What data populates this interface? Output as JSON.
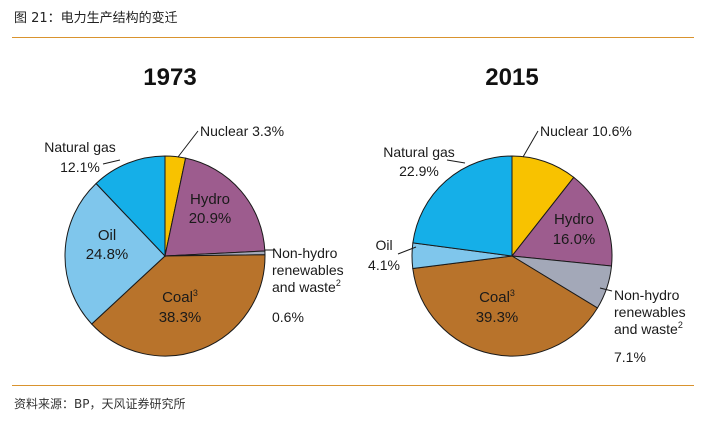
{
  "figure": {
    "title": "图 21：电力生产结构的变迁",
    "source": "资料来源：BP，天风证券研究所"
  },
  "chart_data": [
    {
      "type": "pie",
      "title": "1973",
      "slices": [
        {
          "name": "Nuclear",
          "value": 3.3,
          "color": "#f8c200",
          "label": "Nuclear",
          "value_label": "3.3%"
        },
        {
          "name": "Hydro",
          "value": 20.9,
          "color": "#9d5c8e",
          "label": "Hydro",
          "value_label": "20.9%"
        },
        {
          "name": "Non-hydro renewables and waste",
          "value": 0.6,
          "color": "#a3a8b8",
          "label_lines": [
            "Non-hydro",
            "renewables",
            "and waste"
          ],
          "superscript": "2",
          "value_label": "0.6%"
        },
        {
          "name": "Coal",
          "value": 38.3,
          "color": "#b8732b",
          "label": "Coal",
          "superscript": "3",
          "value_label": "38.3%"
        },
        {
          "name": "Oil",
          "value": 24.8,
          "color": "#7fc6ec",
          "label": "Oil",
          "value_label": "24.8%"
        },
        {
          "name": "Natural gas",
          "value": 12.1,
          "color": "#15afe8",
          "label": "Natural gas",
          "value_label": "12.1%"
        }
      ]
    },
    {
      "type": "pie",
      "title": "2015",
      "slices": [
        {
          "name": "Nuclear",
          "value": 10.6,
          "color": "#f8c200",
          "label": "Nuclear",
          "value_label": "10.6%"
        },
        {
          "name": "Hydro",
          "value": 16.0,
          "color": "#9d5c8e",
          "label": "Hydro",
          "value_label": "16.0%"
        },
        {
          "name": "Non-hydro renewables and waste",
          "value": 7.1,
          "color": "#a3a8b8",
          "label_lines": [
            "Non-hydro",
            "renewables",
            "and waste"
          ],
          "superscript": "2",
          "value_label": "7.1%"
        },
        {
          "name": "Coal",
          "value": 39.3,
          "color": "#b8732b",
          "label": "Coal",
          "superscript": "3",
          "value_label": "39.3%"
        },
        {
          "name": "Oil",
          "value": 4.1,
          "color": "#7fc6ec",
          "label": "Oil",
          "value_label": "4.1%"
        },
        {
          "name": "Natural gas",
          "value": 22.9,
          "color": "#15afe8",
          "label": "Natural gas",
          "value_label": "22.9%"
        }
      ]
    }
  ]
}
